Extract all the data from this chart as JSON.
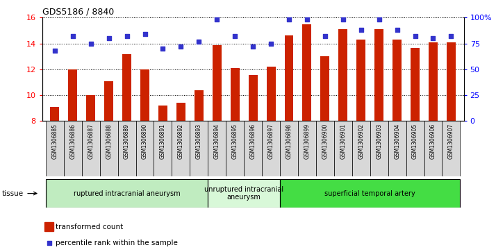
{
  "title": "GDS5186 / 8840",
  "samples": [
    "GSM1306885",
    "GSM1306886",
    "GSM1306887",
    "GSM1306888",
    "GSM1306889",
    "GSM1306890",
    "GSM1306891",
    "GSM1306892",
    "GSM1306893",
    "GSM1306894",
    "GSM1306895",
    "GSM1306896",
    "GSM1306897",
    "GSM1306898",
    "GSM1306899",
    "GSM1306900",
    "GSM1306901",
    "GSM1306902",
    "GSM1306903",
    "GSM1306904",
    "GSM1306905",
    "GSM1306906",
    "GSM1306907"
  ],
  "bar_values": [
    9.1,
    12.0,
    10.0,
    11.1,
    13.2,
    12.0,
    9.2,
    9.4,
    10.4,
    13.85,
    12.1,
    11.55,
    12.2,
    14.6,
    15.5,
    13.0,
    15.1,
    14.3,
    15.1,
    14.3,
    13.65,
    14.1,
    14.1
  ],
  "percentile_values": [
    68,
    82,
    75,
    80,
    82,
    84,
    70,
    72,
    77,
    98,
    82,
    72,
    75,
    98,
    98,
    82,
    98,
    88,
    98,
    88,
    82,
    80,
    82
  ],
  "groups": [
    {
      "label": "ruptured intracranial aneurysm",
      "start": 0,
      "end": 8,
      "color": "#c0ecc0"
    },
    {
      "label": "unruptured intracranial\naneurysm",
      "start": 9,
      "end": 12,
      "color": "#d8f8d8"
    },
    {
      "label": "superficial temporal artery",
      "start": 13,
      "end": 22,
      "color": "#44dd44"
    }
  ],
  "bar_color": "#cc2200",
  "dot_color": "#3333cc",
  "ylim_left": [
    8,
    16
  ],
  "ylim_right": [
    0,
    100
  ],
  "yticks_left": [
    8,
    10,
    12,
    14,
    16
  ],
  "yticks_right": [
    0,
    25,
    50,
    75,
    100
  ],
  "ytick_labels_right": [
    "0",
    "25",
    "50",
    "75",
    "100%"
  ],
  "plot_bg_color": "#ffffff",
  "fig_bg_color": "#ffffff",
  "xtick_bg": "#d8d8d8",
  "tissue_label": "tissue",
  "legend_bar_label": "transformed count",
  "legend_dot_label": "percentile rank within the sample"
}
